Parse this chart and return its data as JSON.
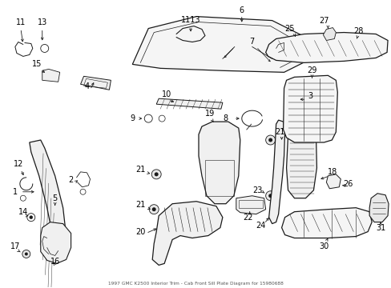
{
  "title": "1997 GMC K2500 Interior Trim - Cab Front Sill Plate Diagram for 15980688",
  "bg_color": "#ffffff",
  "fig_width": 4.89,
  "fig_height": 3.6,
  "dpi": 100,
  "line_color": "#1a1a1a",
  "label_fontsize": 7.0,
  "label_color": "#000000"
}
